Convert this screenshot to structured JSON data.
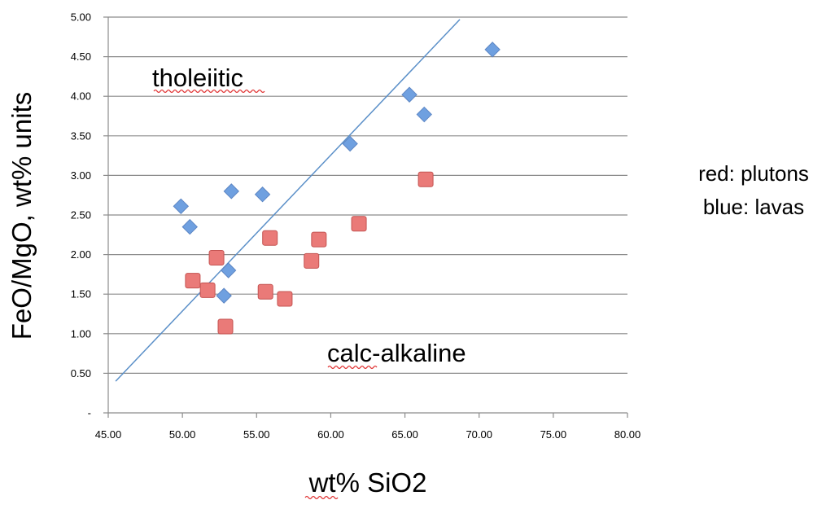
{
  "chart_data": {
    "type": "scatter",
    "xlabel": "wt% SiO2",
    "ylabel": "FeO/MgO, wt% units",
    "xlim": [
      45,
      80
    ],
    "ylim": [
      0,
      5
    ],
    "xticks": [
      "45.00",
      "50.00",
      "55.00",
      "60.00",
      "65.00",
      "70.00",
      "75.00",
      "80.00"
    ],
    "yticks": [
      "-",
      "0.50",
      "1.00",
      "1.50",
      "2.00",
      "2.50",
      "3.00",
      "3.50",
      "4.00",
      "4.50",
      "5.00"
    ],
    "grid": "horizontal",
    "annotations": {
      "tholeiitic": "tholeiitic",
      "calc_alkaline": "calc-alkaline"
    },
    "legend_text": [
      "red: plutons",
      "blue: lavas"
    ],
    "divider_line": {
      "x": [
        45.5,
        68.7
      ],
      "y": [
        0.4,
        4.97
      ],
      "color": "#5a8fc8"
    },
    "series": [
      {
        "marker": "diamond",
        "color": "#6fa0e0",
        "points": [
          [
            49.9,
            2.61
          ],
          [
            50.5,
            2.35
          ],
          [
            52.8,
            1.48
          ],
          [
            53.1,
            1.8
          ],
          [
            53.3,
            2.8
          ],
          [
            55.4,
            2.76
          ],
          [
            61.3,
            3.4
          ],
          [
            65.3,
            4.02
          ],
          [
            66.3,
            3.77
          ],
          [
            70.9,
            4.59
          ]
        ]
      },
      {
        "marker": "square",
        "color": "#ea7a78",
        "points": [
          [
            50.7,
            1.67
          ],
          [
            51.7,
            1.55
          ],
          [
            52.3,
            1.96
          ],
          [
            52.9,
            1.09
          ],
          [
            55.6,
            1.53
          ],
          [
            55.9,
            2.21
          ],
          [
            56.9,
            1.44
          ],
          [
            58.7,
            1.92
          ],
          [
            59.2,
            2.19
          ],
          [
            61.9,
            2.39
          ],
          [
            66.4,
            2.95
          ]
        ]
      }
    ]
  }
}
